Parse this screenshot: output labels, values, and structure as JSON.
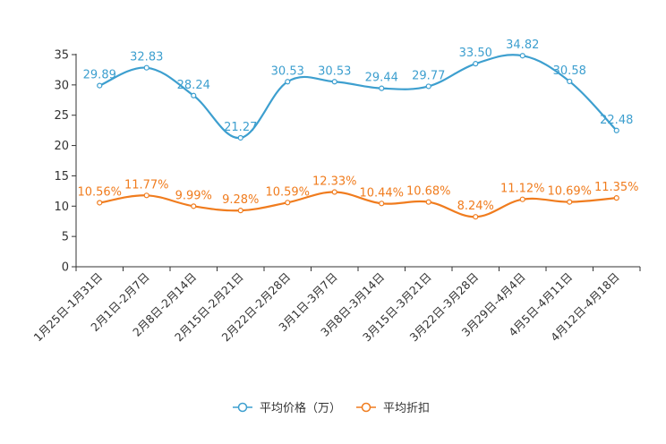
{
  "chart_data": {
    "type": "line",
    "categories": [
      "1月25日-1月31日",
      "2月1日-2月7日",
      "2月8日-2月14日",
      "2月15日-2月21日",
      "2月22日-2月28日",
      "3月1日-3月7日",
      "3月8日-3月14日",
      "3月15日-3月21日",
      "3月22日-3月28日",
      "3月29日-4月4日",
      "4月5日-4月11日",
      "4月12日-4月18日"
    ],
    "ylim": [
      0,
      35
    ],
    "yticks": [
      0,
      5,
      10,
      15,
      20,
      25,
      30,
      35
    ],
    "series": [
      {
        "name": "平均价格（万）",
        "color": "#3d9fcf",
        "values": [
          29.89,
          32.83,
          28.24,
          21.27,
          30.53,
          30.53,
          29.44,
          29.77,
          33.5,
          34.82,
          30.58,
          22.48
        ],
        "labels": [
          "29.89",
          "32.83",
          "28.24",
          "21.27",
          "30.53",
          "30.53",
          "29.44",
          "29.77",
          "33.50",
          "34.82",
          "30.58",
          "22.48"
        ]
      },
      {
        "name": "平均折扣",
        "color": "#f07c1e",
        "values": [
          10.56,
          11.77,
          9.99,
          9.28,
          10.59,
          12.33,
          10.44,
          10.68,
          8.24,
          11.12,
          10.69,
          11.35
        ],
        "labels": [
          "10.56%",
          "11.77%",
          "9.99%",
          "9.28%",
          "10.59%",
          "12.33%",
          "10.44%",
          "10.68%",
          "8.24%",
          "11.12%",
          "10.69%",
          "11.35%"
        ]
      }
    ],
    "legend_position": "bottom-center",
    "grid": false
  }
}
